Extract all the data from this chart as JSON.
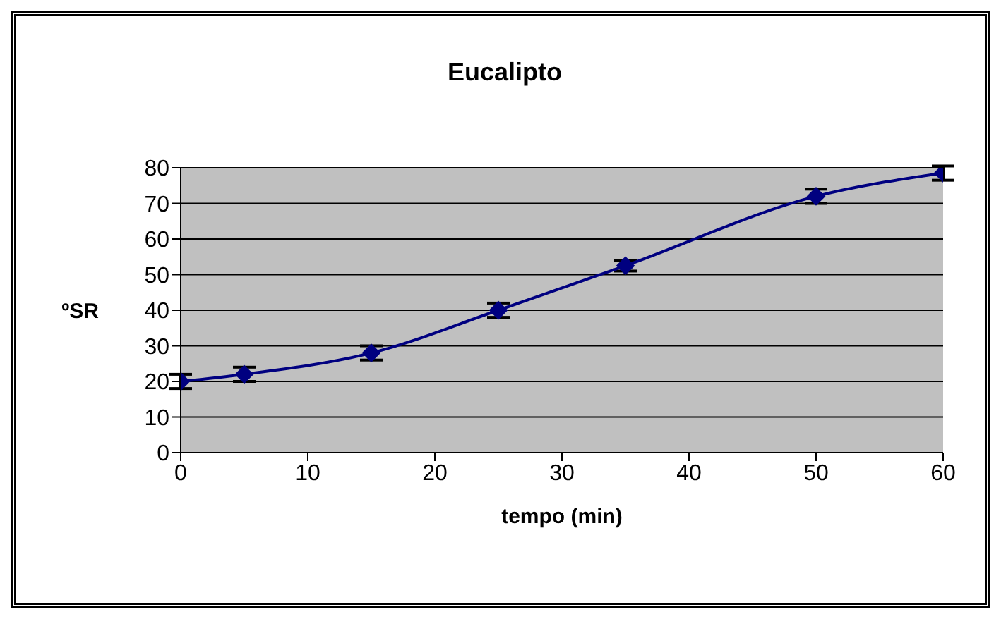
{
  "chart_data": {
    "type": "line",
    "title": "Eucalipto",
    "xlabel": "tempo (min)",
    "ylabel": "ºSR",
    "x": [
      0,
      5,
      15,
      25,
      35,
      50,
      60
    ],
    "series": [
      {
        "color": "#000080",
        "values": [
          20,
          22,
          28,
          40,
          52.5,
          72,
          78.5
        ],
        "errors": [
          2,
          2,
          2,
          2,
          1.5,
          2,
          2
        ]
      }
    ],
    "xlim": [
      0,
      60
    ],
    "xticks": [
      0,
      10,
      20,
      30,
      40,
      50,
      60
    ],
    "ylim": [
      0,
      80
    ],
    "yticks": [
      0,
      10,
      20,
      30,
      40,
      50,
      60,
      70,
      80
    ],
    "grid": "y",
    "marker": "diamond",
    "line_style": "solid"
  }
}
